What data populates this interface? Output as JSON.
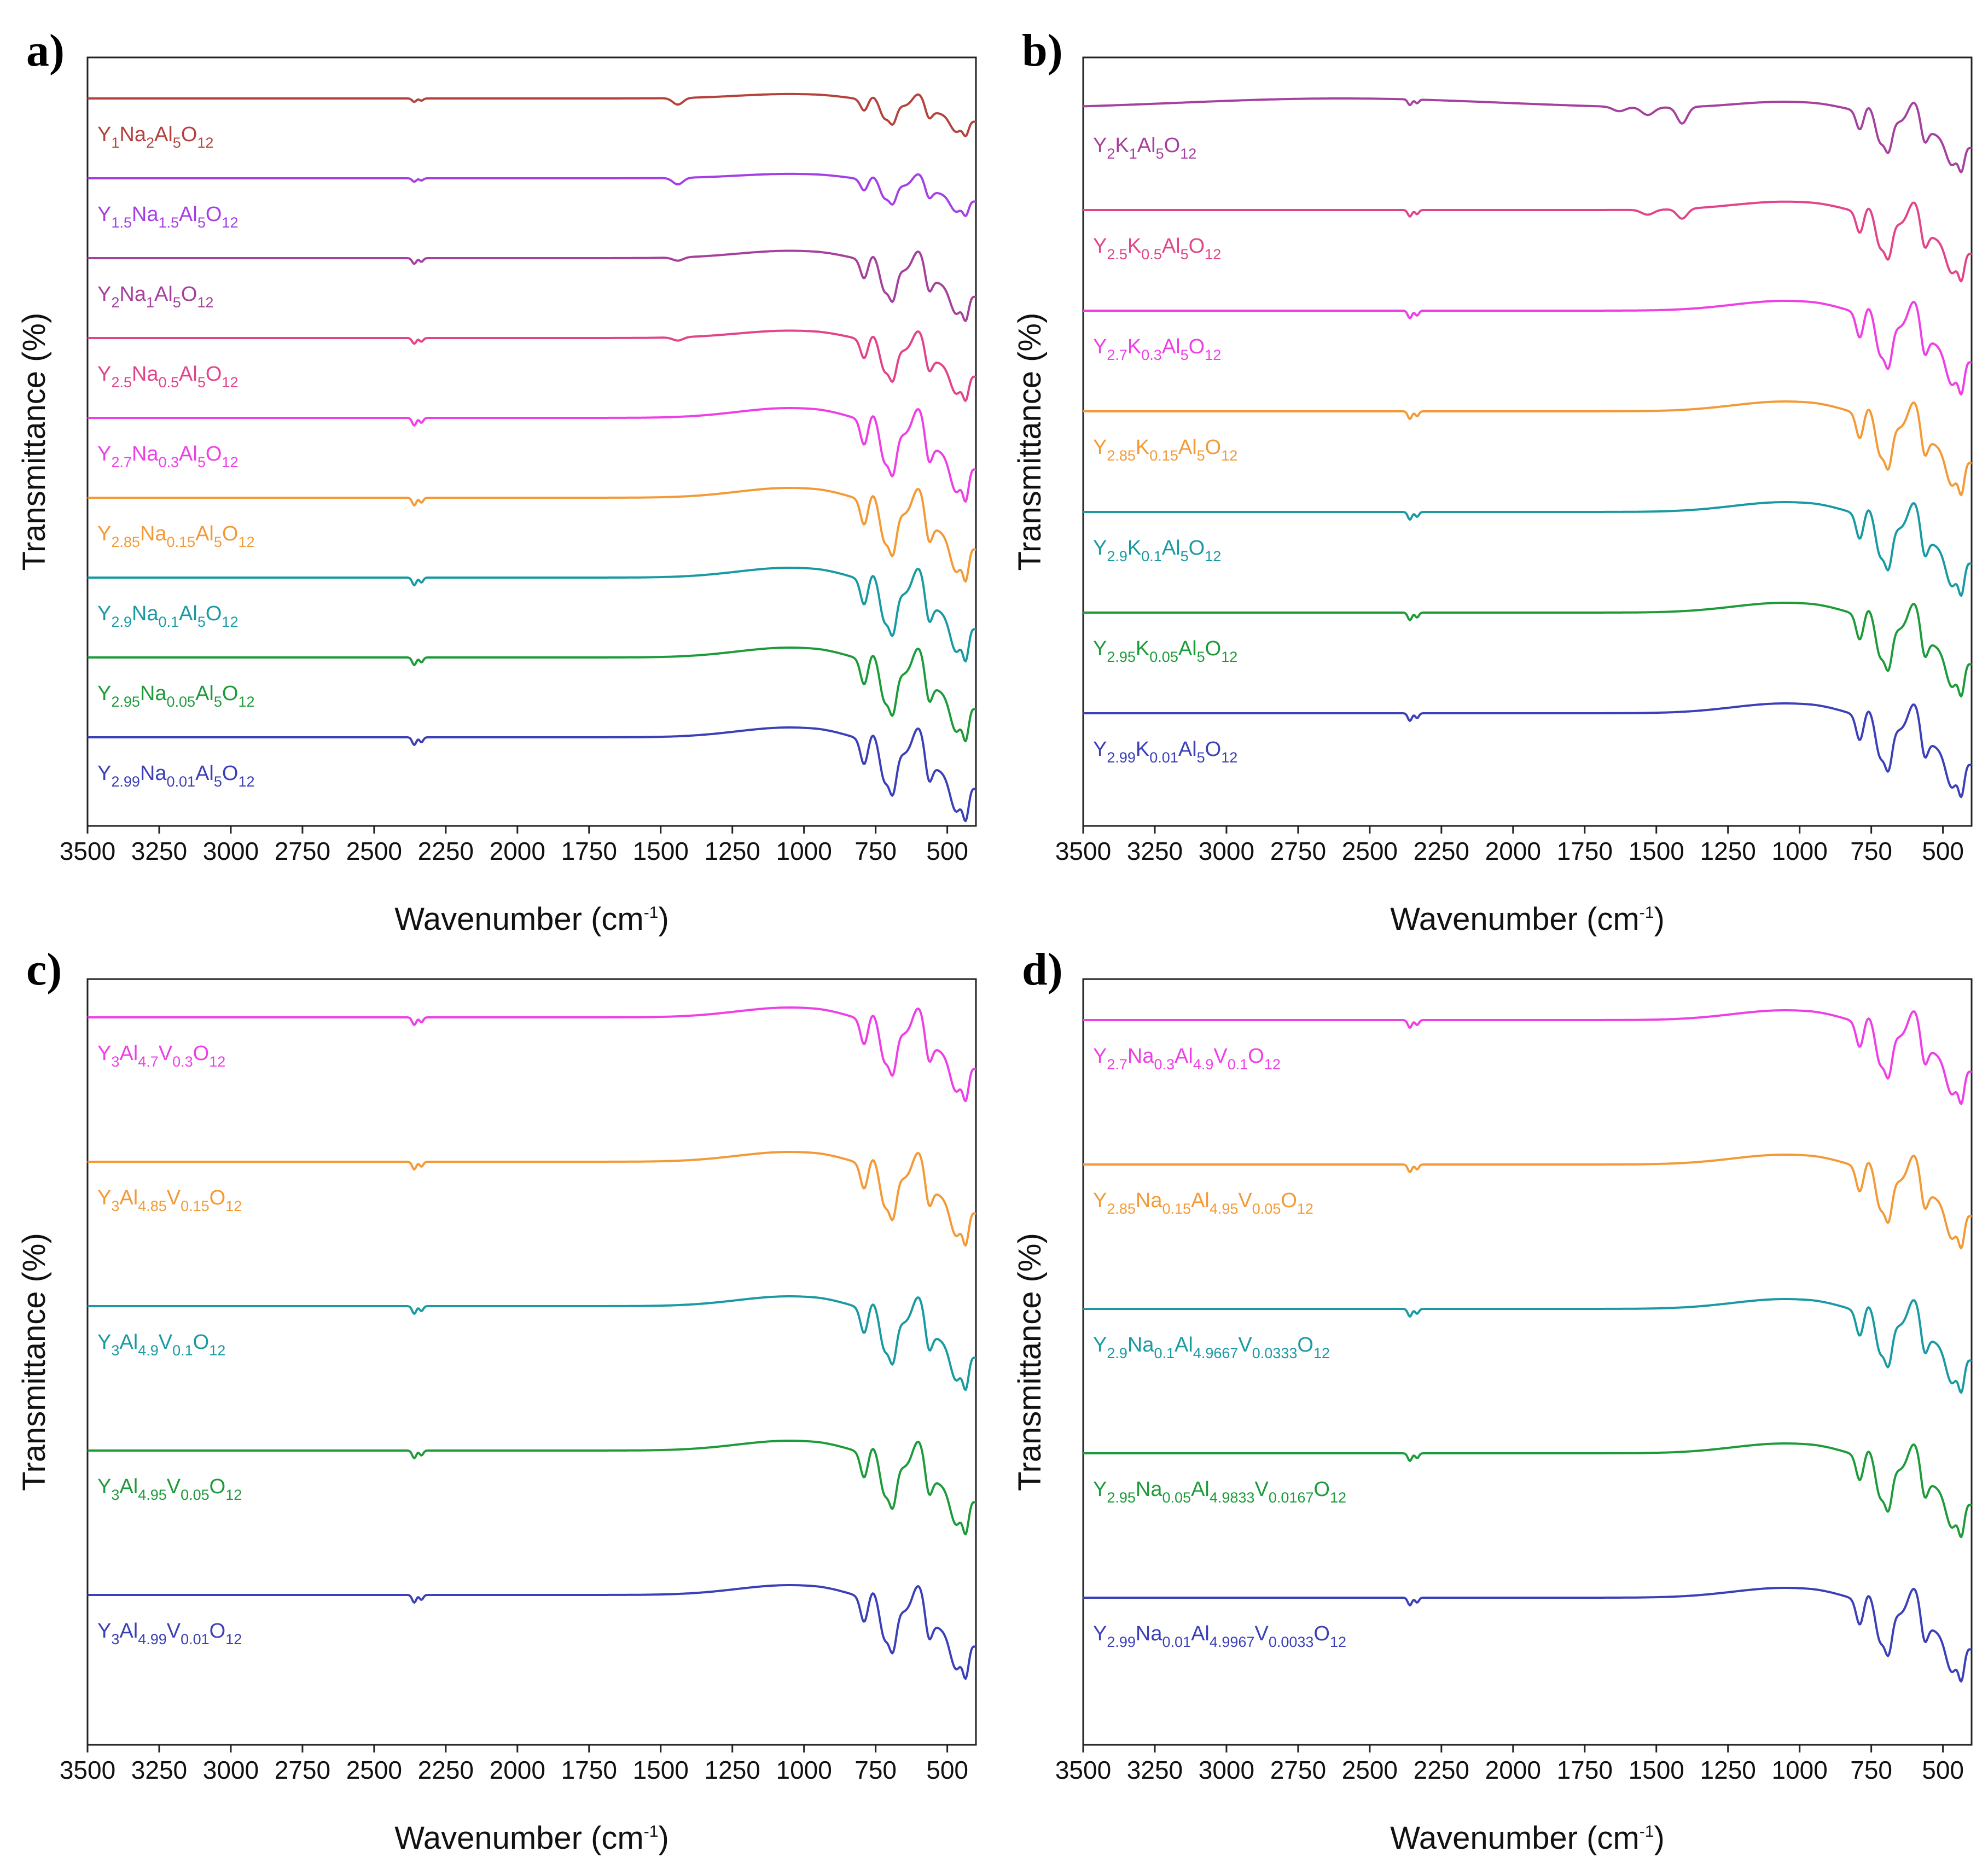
{
  "chart_data": [
    {
      "panel": "a)",
      "type": "line",
      "xlabel": "Wavenumber (cm",
      "xlabel_sup": "-1",
      "xlabel_end": ")",
      "ylabel": "Transmittance (%)",
      "xlim": [
        3500,
        400
      ],
      "x_reversed": true,
      "x_ticks": [
        3500,
        3250,
        3000,
        2750,
        2500,
        2250,
        2000,
        1750,
        1500,
        1250,
        1000,
        750,
        500
      ],
      "grid": false,
      "series": [
        {
          "label": [
            [
              "Y",
              ""
            ],
            [
              "1",
              "sub"
            ],
            [
              "Na",
              ""
            ],
            [
              "2",
              "sub"
            ],
            [
              "Al",
              ""
            ],
            [
              "5",
              "sub"
            ],
            [
              "O",
              ""
            ],
            [
              "12",
              "sub"
            ]
          ],
          "color": "#b5413c",
          "profile": "Na-low"
        },
        {
          "label": [
            [
              "Y",
              ""
            ],
            [
              "1.5",
              "sub"
            ],
            [
              "Na",
              ""
            ],
            [
              "1.5",
              "sub"
            ],
            [
              "Al",
              ""
            ],
            [
              "5",
              "sub"
            ],
            [
              "O",
              ""
            ],
            [
              "12",
              "sub"
            ]
          ],
          "color": "#a43fe6",
          "profile": "Na-low"
        },
        {
          "label": [
            [
              "Y",
              ""
            ],
            [
              "2",
              "sub"
            ],
            [
              "Na",
              ""
            ],
            [
              "1",
              "sub"
            ],
            [
              "Al",
              ""
            ],
            [
              "5",
              "sub"
            ],
            [
              "O",
              ""
            ],
            [
              "12",
              "sub"
            ]
          ],
          "color": "#a5409d",
          "profile": "Na-mid"
        },
        {
          "label": [
            [
              "Y",
              ""
            ],
            [
              "2.5",
              "sub"
            ],
            [
              "Na",
              ""
            ],
            [
              "0.5",
              "sub"
            ],
            [
              "Al",
              ""
            ],
            [
              "5",
              "sub"
            ],
            [
              "O",
              ""
            ],
            [
              "12",
              "sub"
            ]
          ],
          "color": "#e2448a",
          "profile": "Na-mid"
        },
        {
          "label": [
            [
              "Y",
              ""
            ],
            [
              "2.7",
              "sub"
            ],
            [
              "Na",
              ""
            ],
            [
              "0.3",
              "sub"
            ],
            [
              "Al",
              ""
            ],
            [
              "5",
              "sub"
            ],
            [
              "O",
              ""
            ],
            [
              "12",
              "sub"
            ]
          ],
          "color": "#ee3fe6",
          "profile": "strong"
        },
        {
          "label": [
            [
              "Y",
              ""
            ],
            [
              "2.85",
              "sub"
            ],
            [
              "Na",
              ""
            ],
            [
              "0.15",
              "sub"
            ],
            [
              "Al",
              ""
            ],
            [
              "5",
              "sub"
            ],
            [
              "O",
              ""
            ],
            [
              "12",
              "sub"
            ]
          ],
          "color": "#f39a36",
          "profile": "strong"
        },
        {
          "label": [
            [
              "Y",
              ""
            ],
            [
              "2.9",
              "sub"
            ],
            [
              "Na",
              ""
            ],
            [
              "0.1",
              "sub"
            ],
            [
              "Al",
              ""
            ],
            [
              "5",
              "sub"
            ],
            [
              "O",
              ""
            ],
            [
              "12",
              "sub"
            ]
          ],
          "color": "#199aa3",
          "profile": "strong"
        },
        {
          "label": [
            [
              "Y",
              ""
            ],
            [
              "2.95",
              "sub"
            ],
            [
              "Na",
              ""
            ],
            [
              "0.05",
              "sub"
            ],
            [
              "Al",
              ""
            ],
            [
              "5",
              "sub"
            ],
            [
              "O",
              ""
            ],
            [
              "12",
              "sub"
            ]
          ],
          "color": "#1d9b3a",
          "profile": "strong"
        },
        {
          "label": [
            [
              "Y",
              ""
            ],
            [
              "2.99",
              "sub"
            ],
            [
              "Na",
              ""
            ],
            [
              "0.01",
              "sub"
            ],
            [
              "Al",
              ""
            ],
            [
              "5",
              "sub"
            ],
            [
              "O",
              ""
            ],
            [
              "12",
              "sub"
            ]
          ],
          "color": "#3b3fb8",
          "profile": "strong"
        }
      ]
    },
    {
      "panel": "b)",
      "type": "line",
      "xlabel": "Wavenumber (cm",
      "xlabel_sup": "-1",
      "xlabel_end": ")",
      "ylabel": "Transmittance (%)",
      "xlim": [
        3500,
        400
      ],
      "x_reversed": true,
      "x_ticks": [
        3500,
        3250,
        3000,
        2750,
        2500,
        2250,
        2000,
        1750,
        1500,
        1250,
        1000,
        750,
        500
      ],
      "grid": false,
      "series": [
        {
          "label": [
            [
              "Y",
              ""
            ],
            [
              "2",
              "sub"
            ],
            [
              "K",
              ""
            ],
            [
              "1",
              "sub"
            ],
            [
              "Al",
              ""
            ],
            [
              "5",
              "sub"
            ],
            [
              "O",
              ""
            ],
            [
              "12",
              "sub"
            ]
          ],
          "color": "#a5409d",
          "profile": "K-high"
        },
        {
          "label": [
            [
              "Y",
              ""
            ],
            [
              "2.5",
              "sub"
            ],
            [
              "K",
              ""
            ],
            [
              "0.5",
              "sub"
            ],
            [
              "Al",
              ""
            ],
            [
              "5",
              "sub"
            ],
            [
              "O",
              ""
            ],
            [
              "12",
              "sub"
            ]
          ],
          "color": "#e2448a",
          "profile": "K-mid"
        },
        {
          "label": [
            [
              "Y",
              ""
            ],
            [
              "2.7",
              "sub"
            ],
            [
              "K",
              ""
            ],
            [
              "0.3",
              "sub"
            ],
            [
              "Al",
              ""
            ],
            [
              "5",
              "sub"
            ],
            [
              "O",
              ""
            ],
            [
              "12",
              "sub"
            ]
          ],
          "color": "#ee3fe6",
          "profile": "strong"
        },
        {
          "label": [
            [
              "Y",
              ""
            ],
            [
              "2.85",
              "sub"
            ],
            [
              "K",
              ""
            ],
            [
              "0.15",
              "sub"
            ],
            [
              "Al",
              ""
            ],
            [
              "5",
              "sub"
            ],
            [
              "O",
              ""
            ],
            [
              "12",
              "sub"
            ]
          ],
          "color": "#f39a36",
          "profile": "strong"
        },
        {
          "label": [
            [
              "Y",
              ""
            ],
            [
              "2.9",
              "sub"
            ],
            [
              "K",
              ""
            ],
            [
              "0.1",
              "sub"
            ],
            [
              "Al",
              ""
            ],
            [
              "5",
              "sub"
            ],
            [
              "O",
              ""
            ],
            [
              "12",
              "sub"
            ]
          ],
          "color": "#199aa3",
          "profile": "strong"
        },
        {
          "label": [
            [
              "Y",
              ""
            ],
            [
              "2.95",
              "sub"
            ],
            [
              "K",
              ""
            ],
            [
              "0.05",
              "sub"
            ],
            [
              "Al",
              ""
            ],
            [
              "5",
              "sub"
            ],
            [
              "O",
              ""
            ],
            [
              "12",
              "sub"
            ]
          ],
          "color": "#1d9b3a",
          "profile": "strong"
        },
        {
          "label": [
            [
              "Y",
              ""
            ],
            [
              "2.99",
              "sub"
            ],
            [
              "K",
              ""
            ],
            [
              "0.01",
              "sub"
            ],
            [
              "Al",
              ""
            ],
            [
              "5",
              "sub"
            ],
            [
              "O",
              ""
            ],
            [
              "12",
              "sub"
            ]
          ],
          "color": "#3b3fb8",
          "profile": "strong"
        }
      ]
    },
    {
      "panel": "c)",
      "type": "line",
      "xlabel": "Wavenumber (cm",
      "xlabel_sup": "-1",
      "xlabel_end": ")",
      "ylabel": "Transmittance (%)",
      "xlim": [
        3500,
        400
      ],
      "x_reversed": true,
      "x_ticks": [
        3500,
        3250,
        3000,
        2750,
        2500,
        2250,
        2000,
        1750,
        1500,
        1250,
        1000,
        750,
        500
      ],
      "grid": false,
      "series": [
        {
          "label": [
            [
              "Y",
              ""
            ],
            [
              "3",
              "sub"
            ],
            [
              "Al",
              ""
            ],
            [
              "4.7",
              "sub"
            ],
            [
              "V",
              ""
            ],
            [
              "0.3",
              "sub"
            ],
            [
              "O",
              ""
            ],
            [
              "12",
              "sub"
            ]
          ],
          "color": "#ee3fe6",
          "profile": "strong"
        },
        {
          "label": [
            [
              "Y",
              ""
            ],
            [
              "3",
              "sub"
            ],
            [
              "Al",
              ""
            ],
            [
              "4.85",
              "sub"
            ],
            [
              "V",
              ""
            ],
            [
              "0.15",
              "sub"
            ],
            [
              "O",
              ""
            ],
            [
              "12",
              "sub"
            ]
          ],
          "color": "#f39a36",
          "profile": "strong"
        },
        {
          "label": [
            [
              "Y",
              ""
            ],
            [
              "3",
              "sub"
            ],
            [
              "Al",
              ""
            ],
            [
              "4.9",
              "sub"
            ],
            [
              "V",
              ""
            ],
            [
              "0.1",
              "sub"
            ],
            [
              "O",
              ""
            ],
            [
              "12",
              "sub"
            ]
          ],
          "color": "#199aa3",
          "profile": "strong"
        },
        {
          "label": [
            [
              "Y",
              ""
            ],
            [
              "3",
              "sub"
            ],
            [
              "Al",
              ""
            ],
            [
              "4.95",
              "sub"
            ],
            [
              "V",
              ""
            ],
            [
              "0.05",
              "sub"
            ],
            [
              "O",
              ""
            ],
            [
              "12",
              "sub"
            ]
          ],
          "color": "#1d9b3a",
          "profile": "strong"
        },
        {
          "label": [
            [
              "Y",
              ""
            ],
            [
              "3",
              "sub"
            ],
            [
              "Al",
              ""
            ],
            [
              "4.99",
              "sub"
            ],
            [
              "V",
              ""
            ],
            [
              "0.01",
              "sub"
            ],
            [
              "O",
              ""
            ],
            [
              "12",
              "sub"
            ]
          ],
          "color": "#3b3fb8",
          "profile": "strong"
        }
      ]
    },
    {
      "panel": "d)",
      "type": "line",
      "xlabel": "Wavenumber (cm",
      "xlabel_sup": "-1",
      "xlabel_end": ")",
      "ylabel": "Transmittance (%)",
      "xlim": [
        3500,
        400
      ],
      "x_reversed": true,
      "x_ticks": [
        3500,
        3250,
        3000,
        2750,
        2500,
        2250,
        2000,
        1750,
        1500,
        1250,
        1000,
        750,
        500
      ],
      "grid": false,
      "series": [
        {
          "label": [
            [
              "Y",
              ""
            ],
            [
              "2.7",
              "sub"
            ],
            [
              "Na",
              ""
            ],
            [
              "0.3",
              "sub"
            ],
            [
              "Al",
              ""
            ],
            [
              "4.9",
              "sub"
            ],
            [
              "V",
              ""
            ],
            [
              "0.1",
              "sub"
            ],
            [
              "O",
              ""
            ],
            [
              "12",
              "sub"
            ]
          ],
          "color": "#ee3fe6",
          "profile": "strong"
        },
        {
          "label": [
            [
              "Y",
              ""
            ],
            [
              "2.85",
              "sub"
            ],
            [
              "Na",
              ""
            ],
            [
              "0.15",
              "sub"
            ],
            [
              "Al",
              ""
            ],
            [
              "4.95",
              "sub"
            ],
            [
              "V",
              ""
            ],
            [
              "0.05",
              "sub"
            ],
            [
              "O",
              ""
            ],
            [
              "12",
              "sub"
            ]
          ],
          "color": "#f39a36",
          "profile": "strong"
        },
        {
          "label": [
            [
              "Y",
              ""
            ],
            [
              "2.9",
              "sub"
            ],
            [
              "Na",
              ""
            ],
            [
              "0.1",
              "sub"
            ],
            [
              "Al",
              ""
            ],
            [
              "4.9667",
              "sub"
            ],
            [
              "V",
              ""
            ],
            [
              "0.0333",
              "sub"
            ],
            [
              "O",
              ""
            ],
            [
              "12",
              "sub"
            ]
          ],
          "color": "#199aa3",
          "profile": "strong"
        },
        {
          "label": [
            [
              "Y",
              ""
            ],
            [
              "2.95",
              "sub"
            ],
            [
              "Na",
              ""
            ],
            [
              "0.05",
              "sub"
            ],
            [
              "Al",
              ""
            ],
            [
              "4.9833",
              "sub"
            ],
            [
              "V",
              ""
            ],
            [
              "0.0167",
              "sub"
            ],
            [
              "O",
              ""
            ],
            [
              "12",
              "sub"
            ]
          ],
          "color": "#1d9b3a",
          "profile": "strong"
        },
        {
          "label": [
            [
              "Y",
              ""
            ],
            [
              "2.99",
              "sub"
            ],
            [
              "Na",
              ""
            ],
            [
              "0.01",
              "sub"
            ],
            [
              "Al",
              ""
            ],
            [
              "4.9967",
              "sub"
            ],
            [
              "V",
              ""
            ],
            [
              "0.0033",
              "sub"
            ],
            [
              "O",
              ""
            ],
            [
              "12",
              "sub"
            ]
          ],
          "color": "#3b3fb8",
          "profile": "strong"
        }
      ]
    }
  ]
}
